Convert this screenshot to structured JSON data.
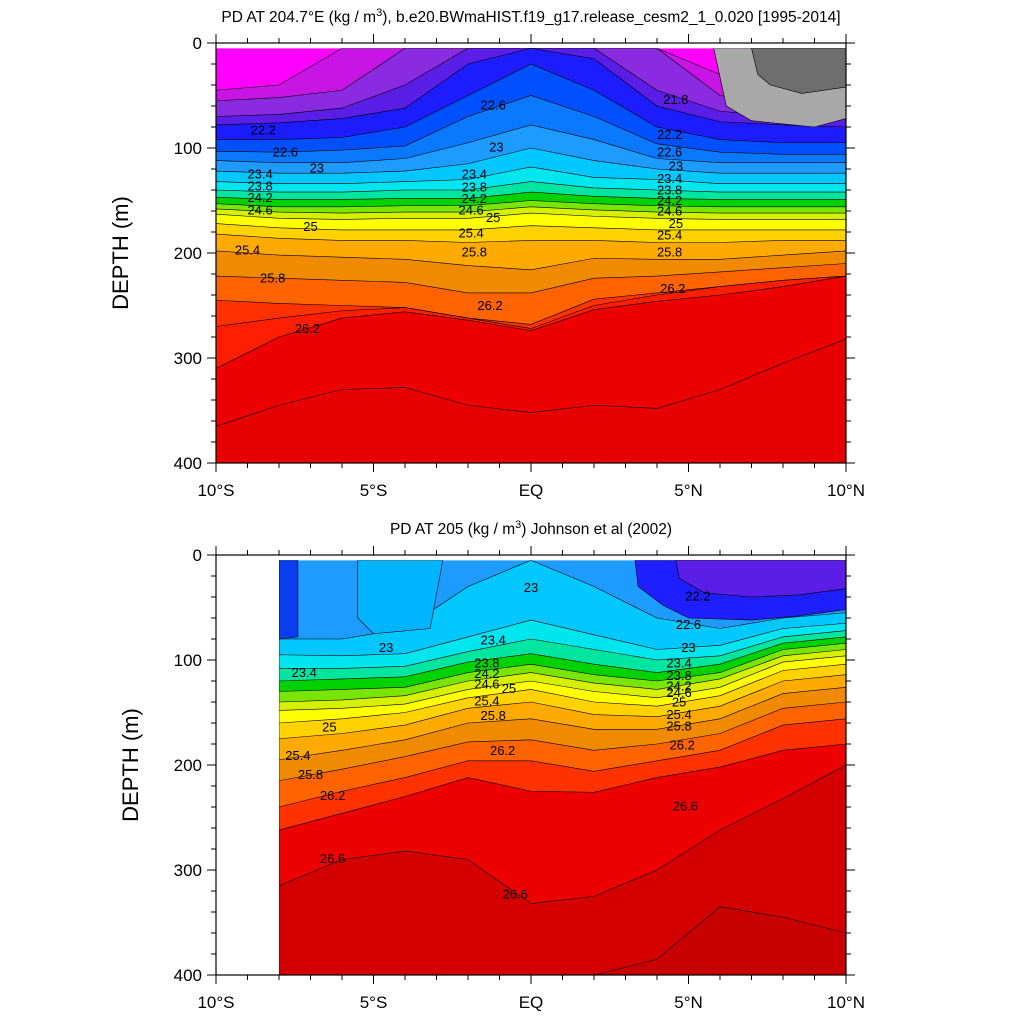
{
  "chart_data": [
    {
      "type": "contour",
      "title_prefix": "PD AT 204.7°E (kg / m",
      "title_sup": "3",
      "title_suffix": "), b.e20.BWmaHIST.f19_g17.release_cesm2_1_0.020 [1995-2014]",
      "ylabel": "DEPTH (m)",
      "xlabel": "",
      "xlim": [
        -10,
        10
      ],
      "ylim": [
        0,
        400
      ],
      "y_reversed": true,
      "x_ticks": [
        {
          "v": -10,
          "label": "10°S"
        },
        {
          "v": -5,
          "label": "5°S"
        },
        {
          "v": 0,
          "label": "EQ"
        },
        {
          "v": 5,
          "label": "5°N"
        },
        {
          "v": 10,
          "label": "10°N"
        }
      ],
      "y_ticks": [
        0,
        100,
        200,
        300,
        400
      ],
      "data_x_range": [
        -10,
        10
      ],
      "data_top_depth": 5,
      "x_nodes": [
        -10,
        -8,
        -6,
        -4,
        -2,
        0,
        2,
        4,
        6,
        8,
        10
      ],
      "contour_labels": [
        {
          "text": "22.2",
          "x": -8.5,
          "y": 84
        },
        {
          "text": "22.6",
          "x": -7.8,
          "y": 105
        },
        {
          "text": "23",
          "x": -6.8,
          "y": 120
        },
        {
          "text": "23.4",
          "x": -8.6,
          "y": 126
        },
        {
          "text": "23.8",
          "x": -8.6,
          "y": 137
        },
        {
          "text": "24.2",
          "x": -8.6,
          "y": 148
        },
        {
          "text": "24.6",
          "x": -8.6,
          "y": 160
        },
        {
          "text": "25",
          "x": -7.0,
          "y": 176
        },
        {
          "text": "25.4",
          "x": -9.0,
          "y": 198
        },
        {
          "text": "25.8",
          "x": -8.2,
          "y": 225
        },
        {
          "text": "26.2",
          "x": -7.1,
          "y": 273
        },
        {
          "text": "22.6",
          "x": -1.2,
          "y": 60
        },
        {
          "text": "23",
          "x": -1.1,
          "y": 100
        },
        {
          "text": "23.4",
          "x": -1.8,
          "y": 126
        },
        {
          "text": "23.8",
          "x": -1.8,
          "y": 138
        },
        {
          "text": "24.2",
          "x": -1.8,
          "y": 149
        },
        {
          "text": "24.6",
          "x": -1.9,
          "y": 160
        },
        {
          "text": "25",
          "x": -1.2,
          "y": 167
        },
        {
          "text": "25.4",
          "x": -1.9,
          "y": 182
        },
        {
          "text": "25.8",
          "x": -1.8,
          "y": 200
        },
        {
          "text": "26.2",
          "x": -1.3,
          "y": 251
        },
        {
          "text": "21.8",
          "x": 4.6,
          "y": 55
        },
        {
          "text": "22.2",
          "x": 4.4,
          "y": 88
        },
        {
          "text": "22.6",
          "x": 4.4,
          "y": 105
        },
        {
          "text": "23",
          "x": 4.6,
          "y": 118
        },
        {
          "text": "23.4",
          "x": 4.4,
          "y": 130
        },
        {
          "text": "23.8",
          "x": 4.4,
          "y": 141
        },
        {
          "text": "24.2",
          "x": 4.4,
          "y": 151
        },
        {
          "text": "24.6",
          "x": 4.4,
          "y": 161
        },
        {
          "text": "25",
          "x": 4.6,
          "y": 173
        },
        {
          "text": "25.4",
          "x": 4.4,
          "y": 184
        },
        {
          "text": "25.8",
          "x": 4.4,
          "y": 200
        },
        {
          "text": "26.2",
          "x": 4.5,
          "y": 235
        }
      ]
    },
    {
      "type": "contour",
      "title_prefix": "PD AT 205 (kg / m",
      "title_sup": "3",
      "title_suffix": ") Johnson et al (2002)",
      "ylabel": "DEPTH (m)",
      "xlabel": "",
      "xlim": [
        -10,
        10
      ],
      "ylim": [
        0,
        400
      ],
      "y_reversed": true,
      "x_ticks": [
        {
          "v": -10,
          "label": "10°S"
        },
        {
          "v": -5,
          "label": "5°S"
        },
        {
          "v": 0,
          "label": "EQ"
        },
        {
          "v": 5,
          "label": "5°N"
        },
        {
          "v": 10,
          "label": "10°N"
        }
      ],
      "y_ticks": [
        0,
        100,
        200,
        300,
        400
      ],
      "data_x_range": [
        -8,
        10
      ],
      "data_top_depth": 5,
      "x_nodes": [
        -8,
        -6,
        -4,
        -2,
        0,
        2,
        4,
        6,
        8,
        10
      ],
      "contour_labels": [
        {
          "text": "23",
          "x": 0.0,
          "y": 32
        },
        {
          "text": "22.2",
          "x": 5.3,
          "y": 40
        },
        {
          "text": "22.6",
          "x": 5.0,
          "y": 67
        },
        {
          "text": "23",
          "x": -4.6,
          "y": 89
        },
        {
          "text": "23.4",
          "x": -1.2,
          "y": 82
        },
        {
          "text": "23",
          "x": 5.0,
          "y": 89
        },
        {
          "text": "23.4",
          "x": -7.2,
          "y": 113
        },
        {
          "text": "23.8",
          "x": -1.4,
          "y": 104
        },
        {
          "text": "24.2",
          "x": -1.4,
          "y": 114
        },
        {
          "text": "24.6",
          "x": -1.4,
          "y": 124
        },
        {
          "text": "25",
          "x": -0.7,
          "y": 128
        },
        {
          "text": "25.4",
          "x": -1.4,
          "y": 140
        },
        {
          "text": "25.8",
          "x": -1.2,
          "y": 154
        },
        {
          "text": "26.2",
          "x": -0.9,
          "y": 187
        },
        {
          "text": "23.4",
          "x": 4.7,
          "y": 104
        },
        {
          "text": "23.8",
          "x": 4.7,
          "y": 116
        },
        {
          "text": "24.2",
          "x": 4.7,
          "y": 126
        },
        {
          "text": "24.6",
          "x": 4.7,
          "y": 132
        },
        {
          "text": "25",
          "x": 4.7,
          "y": 141
        },
        {
          "text": "25.4",
          "x": 4.7,
          "y": 153
        },
        {
          "text": "25.8",
          "x": 4.7,
          "y": 164
        },
        {
          "text": "26.2",
          "x": 4.8,
          "y": 182
        },
        {
          "text": "25",
          "x": -6.4,
          "y": 165
        },
        {
          "text": "25.4",
          "x": -7.4,
          "y": 192
        },
        {
          "text": "25.8",
          "x": -7.0,
          "y": 210
        },
        {
          "text": "26.2",
          "x": -6.3,
          "y": 230
        },
        {
          "text": "26.6",
          "x": 4.9,
          "y": 240
        },
        {
          "text": "26.6",
          "x": -6.3,
          "y": 290
        },
        {
          "text": "26.6",
          "x": -0.5,
          "y": 324
        }
      ]
    }
  ]
}
